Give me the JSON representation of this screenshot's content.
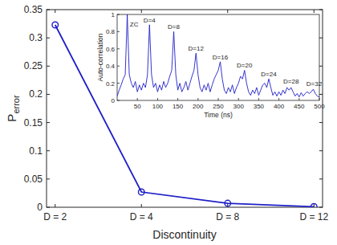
{
  "chart_data": [
    {
      "type": "line",
      "categories": [
        "D = 2",
        "D = 4",
        "D = 8",
        "D = 12"
      ],
      "values": [
        0.323,
        0.027,
        0.007,
        0.001
      ],
      "color": "#1f1fc8",
      "marker": "circle",
      "line_style": "solid",
      "xlabel": "Discontinuity",
      "ylabel": {
        "text": "P",
        "subscript": "error"
      },
      "ylim": [
        0,
        0.35
      ],
      "yticks": [
        0,
        0.05,
        0.1,
        0.15,
        0.2,
        0.25,
        0.3,
        0.35
      ],
      "grid": false
    },
    {
      "type": "line",
      "x": [
        0,
        5,
        10,
        15,
        20,
        25,
        30,
        35,
        40,
        45,
        50,
        55,
        60,
        65,
        70,
        75,
        80,
        85,
        90,
        95,
        100,
        105,
        110,
        115,
        120,
        125,
        130,
        135,
        140,
        145,
        150,
        155,
        160,
        165,
        170,
        175,
        180,
        185,
        190,
        195,
        200,
        205,
        210,
        215,
        220,
        225,
        230,
        235,
        240,
        245,
        250,
        255,
        260,
        265,
        270,
        275,
        280,
        285,
        290,
        295,
        300,
        305,
        310,
        315,
        320,
        325,
        330,
        335,
        340,
        345,
        350,
        355,
        360,
        365,
        370,
        375,
        380,
        385,
        390,
        395,
        400,
        405,
        410,
        415,
        420,
        425,
        430,
        435,
        440,
        445,
        450,
        455,
        460,
        465,
        470,
        475,
        480,
        485,
        490,
        495,
        500
      ],
      "values": [
        0.05,
        0.12,
        0.18,
        0.25,
        0.3,
        1.0,
        0.3,
        0.2,
        0.15,
        0.22,
        0.1,
        0.18,
        0.12,
        0.2,
        0.15,
        0.3,
        0.88,
        0.3,
        0.15,
        0.2,
        0.1,
        0.18,
        0.12,
        0.22,
        0.15,
        0.2,
        0.28,
        0.35,
        0.8,
        0.3,
        0.12,
        0.2,
        0.1,
        0.15,
        0.22,
        0.12,
        0.2,
        0.28,
        0.35,
        0.55,
        0.3,
        0.15,
        0.1,
        0.18,
        0.12,
        0.2,
        0.1,
        0.18,
        0.25,
        0.3,
        0.35,
        0.45,
        0.25,
        0.12,
        0.08,
        0.15,
        0.1,
        0.18,
        0.08,
        0.15,
        0.2,
        0.28,
        0.25,
        0.35,
        0.2,
        0.1,
        0.06,
        0.12,
        0.08,
        0.15,
        0.06,
        0.12,
        0.18,
        0.2,
        0.15,
        0.25,
        0.15,
        0.06,
        0.1,
        0.05,
        0.1,
        0.06,
        0.12,
        0.08,
        0.15,
        0.12,
        0.15,
        0.1,
        0.05,
        0.08,
        0.04,
        0.09,
        0.05,
        0.08,
        0.1,
        0.08,
        0.1,
        0.13,
        0.08,
        0.05,
        0.04
      ],
      "color": "#1f1fc8",
      "line_style": "solid",
      "xlabel": "Time (ns)",
      "ylabel": "Auto-correlation",
      "xlim": [
        0,
        500
      ],
      "xticks": [
        50,
        100,
        150,
        200,
        250,
        300,
        350,
        400,
        450,
        500
      ],
      "ylim": [
        0,
        1
      ],
      "yticks": [
        0,
        0.2,
        0.4,
        0.6,
        0.8,
        1
      ],
      "annotations": [
        {
          "text": "ZC",
          "x": 42,
          "y": 0.86
        },
        {
          "text": "D=4",
          "x": 80,
          "y": 0.91
        },
        {
          "text": "D=8",
          "x": 140,
          "y": 0.83
        },
        {
          "text": "D=12",
          "x": 195,
          "y": 0.58
        },
        {
          "text": "D=16",
          "x": 255,
          "y": 0.48
        },
        {
          "text": "D=20",
          "x": 315,
          "y": 0.38
        },
        {
          "text": "D=24",
          "x": 375,
          "y": 0.28
        },
        {
          "text": "D=28",
          "x": 430,
          "y": 0.2
        },
        {
          "text": "D=32",
          "x": 487,
          "y": 0.17
        }
      ],
      "grid": false
    }
  ]
}
